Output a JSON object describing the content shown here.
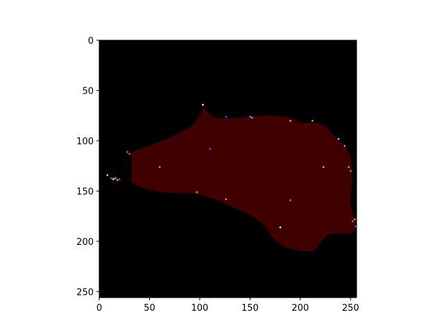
{
  "chart_data": {
    "type": "heatmap",
    "title": "",
    "xlabel": "",
    "ylabel": "",
    "image_size": [
      256,
      256
    ],
    "xlim": [
      0,
      256
    ],
    "ylim": [
      256,
      0
    ],
    "x_ticks": [
      0,
      50,
      100,
      150,
      200,
      250
    ],
    "y_ticks": [
      0,
      50,
      100,
      150,
      200,
      250
    ],
    "grid": false,
    "colors": {
      "background": "#000000",
      "region": "#3f0000",
      "figure": "#ffffff"
    },
    "region_outline": [
      [
        32,
        112
      ],
      [
        40,
        108
      ],
      [
        52,
        104
      ],
      [
        62,
        100
      ],
      [
        72,
        96
      ],
      [
        82,
        91
      ],
      [
        92,
        85
      ],
      [
        100,
        75
      ],
      [
        104,
        67
      ],
      [
        108,
        72
      ],
      [
        115,
        77
      ],
      [
        122,
        78
      ],
      [
        134,
        77
      ],
      [
        150,
        76
      ],
      [
        165,
        75
      ],
      [
        178,
        75
      ],
      [
        186,
        76
      ],
      [
        194,
        79
      ],
      [
        200,
        82
      ],
      [
        208,
        82
      ],
      [
        218,
        82
      ],
      [
        226,
        86
      ],
      [
        232,
        94
      ],
      [
        240,
        101
      ],
      [
        246,
        108
      ],
      [
        250,
        116
      ],
      [
        251,
        125
      ],
      [
        252,
        136
      ],
      [
        251,
        148
      ],
      [
        250,
        160
      ],
      [
        252,
        171
      ],
      [
        255,
        180
      ],
      [
        254,
        190
      ],
      [
        248,
        193
      ],
      [
        236,
        192
      ],
      [
        228,
        193
      ],
      [
        222,
        199
      ],
      [
        217,
        206
      ],
      [
        212,
        210
      ],
      [
        202,
        210
      ],
      [
        188,
        207
      ],
      [
        178,
        202
      ],
      [
        170,
        193
      ],
      [
        163,
        183
      ],
      [
        154,
        176
      ],
      [
        142,
        170
      ],
      [
        128,
        164
      ],
      [
        115,
        158
      ],
      [
        102,
        154
      ],
      [
        88,
        152
      ],
      [
        74,
        152
      ],
      [
        62,
        151
      ],
      [
        50,
        149
      ],
      [
        40,
        146
      ],
      [
        32,
        141
      ]
    ],
    "specks": [
      {
        "x": 12,
        "y": 137,
        "color": "#ff4040"
      },
      {
        "x": 14,
        "y": 138,
        "color": "#ffffff"
      },
      {
        "x": 16,
        "y": 137,
        "color": "#f0a070"
      },
      {
        "x": 18,
        "y": 139,
        "color": "#c0c0c0"
      },
      {
        "x": 20,
        "y": 138,
        "color": "#a06030"
      },
      {
        "x": 8,
        "y": 134,
        "color": "#ffd080"
      },
      {
        "x": 28,
        "y": 111,
        "color": "#ff5050"
      },
      {
        "x": 30,
        "y": 113,
        "color": "#e06040"
      },
      {
        "x": 126,
        "y": 76,
        "color": "#6040ff"
      },
      {
        "x": 150,
        "y": 76,
        "color": "#40a0ff"
      },
      {
        "x": 152,
        "y": 77,
        "color": "#40c0c0"
      },
      {
        "x": 110,
        "y": 108,
        "color": "#8040ff"
      },
      {
        "x": 103,
        "y": 64,
        "color": "#ffffff"
      },
      {
        "x": 248,
        "y": 126,
        "color": "#d0a040"
      },
      {
        "x": 250,
        "y": 130,
        "color": "#c08040"
      },
      {
        "x": 252,
        "y": 180,
        "color": "#a0a020"
      },
      {
        "x": 254,
        "y": 178,
        "color": "#c0b030"
      },
      {
        "x": 255,
        "y": 185,
        "color": "#a09020"
      },
      {
        "x": 223,
        "y": 126,
        "color": "#d0c060"
      },
      {
        "x": 212,
        "y": 80,
        "color": "#e0a050"
      },
      {
        "x": 190,
        "y": 159,
        "color": "#c08040"
      },
      {
        "x": 126,
        "y": 158,
        "color": "#ff80a0"
      },
      {
        "x": 60,
        "y": 126,
        "color": "#ff8060"
      },
      {
        "x": 97,
        "y": 151,
        "color": "#d0a040"
      },
      {
        "x": 180,
        "y": 186,
        "color": "#f0f0f0"
      },
      {
        "x": 238,
        "y": 98,
        "color": "#f0c060"
      },
      {
        "x": 244,
        "y": 105,
        "color": "#f0a060"
      },
      {
        "x": 190,
        "y": 80,
        "color": "#ffa060"
      }
    ]
  }
}
